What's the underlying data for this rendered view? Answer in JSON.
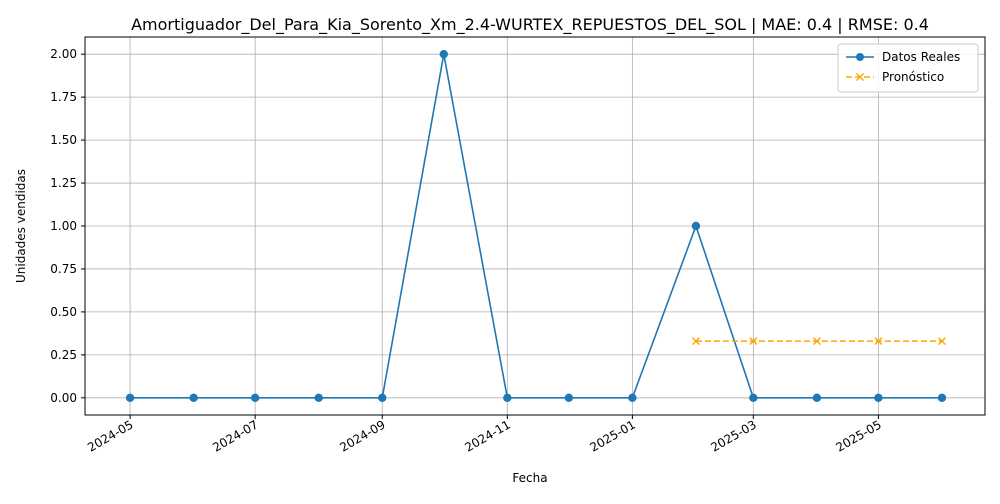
{
  "chart_data": {
    "type": "line",
    "title": "Amortiguador_Del_Para_Kia_Sorento_Xm_2.4-WURTEX_REPUESTOS_DEL_SOL | MAE: 0.4 | RMSE: 0.4",
    "xlabel": "Fecha",
    "ylabel": "Unidades vendidas",
    "x_ticks": [
      "2024-05",
      "2024-07",
      "2024-09",
      "2024-11",
      "2025-01",
      "2025-03",
      "2025-05"
    ],
    "y_ticks": [
      "0.00",
      "0.25",
      "0.50",
      "0.75",
      "1.00",
      "1.25",
      "1.50",
      "1.75",
      "2.00"
    ],
    "ylim": [
      -0.1,
      2.1
    ],
    "xlim": [
      "2024-04-09",
      "2025-06-22"
    ],
    "grid": true,
    "legend_position": "top-right",
    "series": [
      {
        "name": "Datos Reales",
        "color": "#1f77b4",
        "style": "solid",
        "marker": "circle",
        "x": [
          "2024-05-01",
          "2024-06-01",
          "2024-07-01",
          "2024-08-01",
          "2024-09-01",
          "2024-10-01",
          "2024-11-01",
          "2024-12-01",
          "2025-01-01",
          "2025-02-01",
          "2025-03-01",
          "2025-04-01",
          "2025-05-01",
          "2025-06-01"
        ],
        "values": [
          0,
          0,
          0,
          0,
          0,
          2,
          0,
          0,
          0,
          1,
          0,
          0,
          0,
          0
        ]
      },
      {
        "name": "Pronóstico",
        "color": "#ffa500",
        "style": "dashed",
        "marker": "x",
        "x": [
          "2025-02-01",
          "2025-03-01",
          "2025-04-01",
          "2025-05-01",
          "2025-06-01"
        ],
        "values": [
          0.33,
          0.33,
          0.33,
          0.33,
          0.33
        ]
      }
    ]
  }
}
